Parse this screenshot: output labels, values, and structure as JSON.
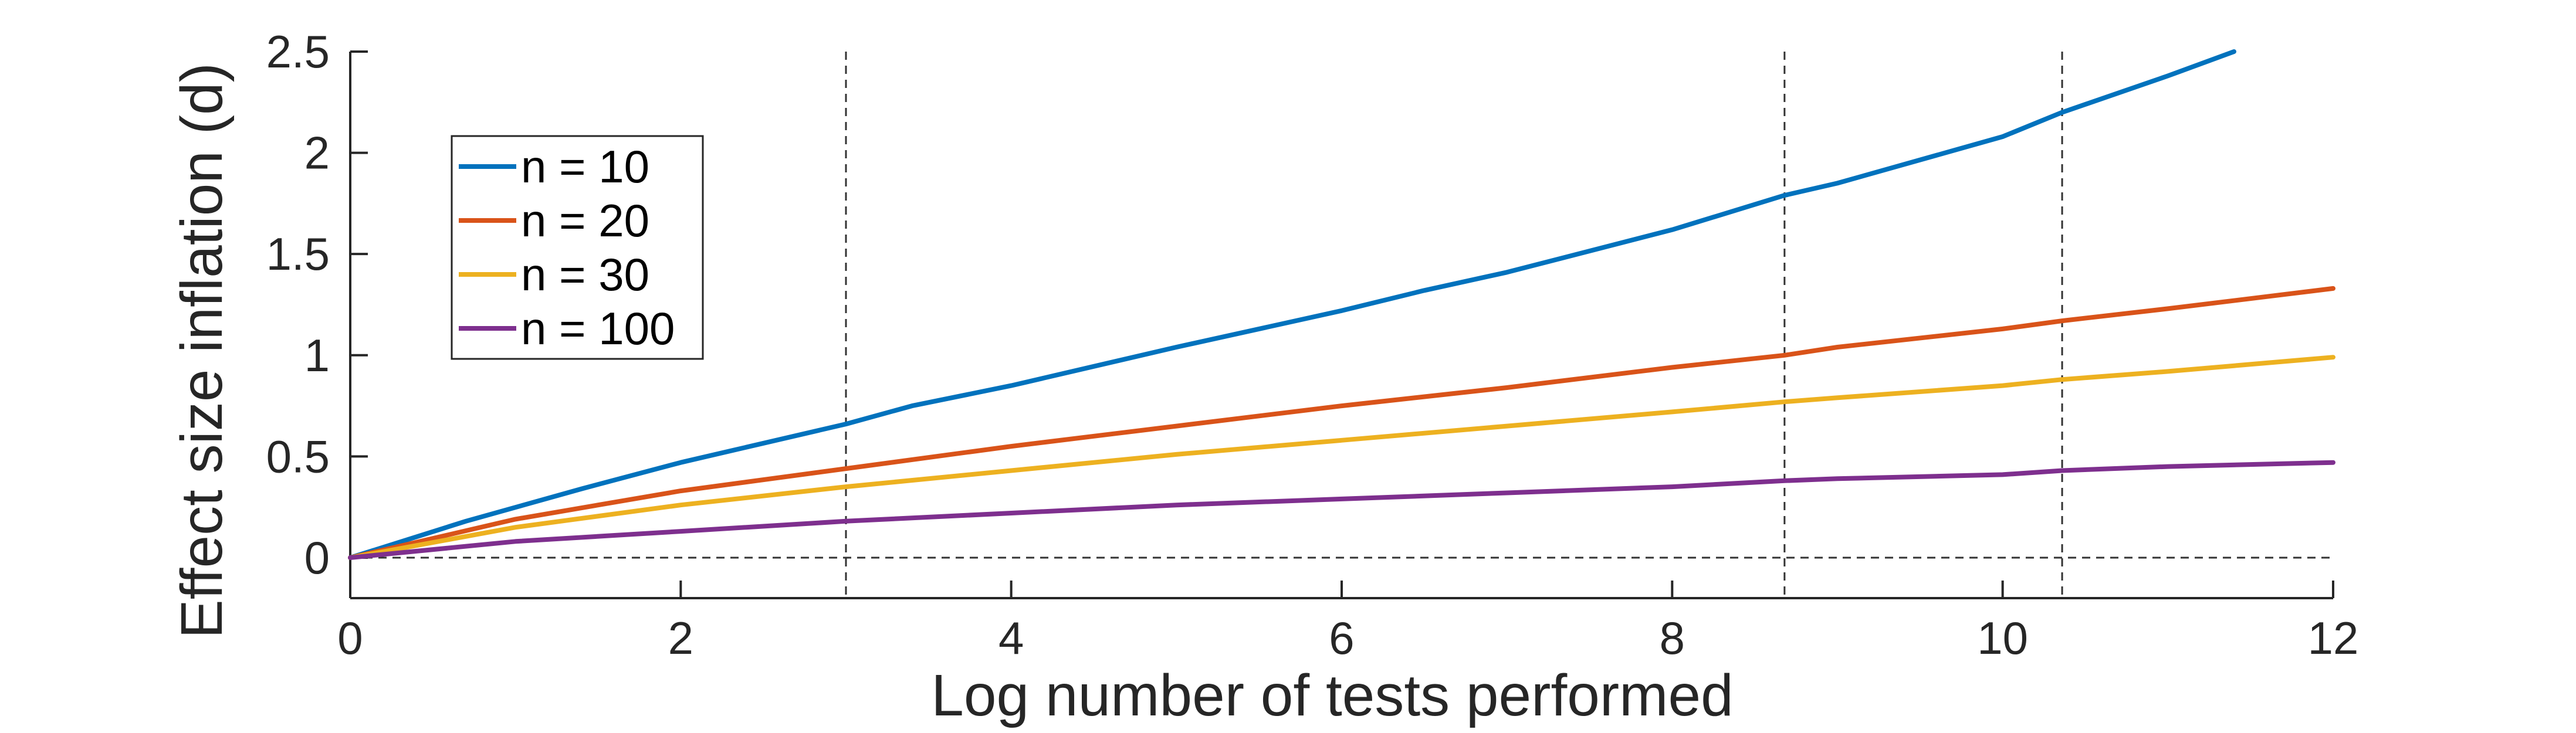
{
  "chart_data": {
    "type": "line",
    "title": "",
    "xlabel": "Log number of tests performed",
    "ylabel": "Effect size inflation (d)",
    "xlim": [
      0,
      12
    ],
    "ylim": [
      -0.2,
      2.5
    ],
    "xticks": [
      "0",
      "2",
      "4",
      "6",
      "8",
      "10",
      "12"
    ],
    "yticks": [
      "0",
      "0.5",
      "1",
      "1.5",
      "2",
      "2.5"
    ],
    "grid": false,
    "legend_position": "top-left",
    "reference_lines": {
      "vertical_x": [
        0,
        3.0,
        8.68,
        10.36
      ],
      "horizontal_y": [
        0
      ],
      "style": "dashed"
    },
    "series": [
      {
        "name": "n = 10",
        "color": "#0072BD",
        "x": [
          0,
          0.7,
          1.4,
          2.0,
          3.0,
          3.4,
          4.0,
          5.0,
          6.0,
          6.5,
          7.0,
          8.0,
          8.68,
          9.0,
          10.0,
          10.36,
          11.0,
          11.4
        ],
        "y": [
          0,
          0.18,
          0.34,
          0.47,
          0.66,
          0.75,
          0.85,
          1.04,
          1.22,
          1.32,
          1.41,
          1.62,
          1.79,
          1.85,
          2.08,
          2.2,
          2.38,
          2.5
        ]
      },
      {
        "name": "n = 20",
        "color": "#D95319",
        "x": [
          0,
          1.0,
          2.0,
          3.0,
          4.0,
          5.0,
          6.0,
          7.0,
          8.0,
          8.68,
          9.0,
          10.0,
          10.36,
          11.0,
          12.0
        ],
        "y": [
          0,
          0.19,
          0.33,
          0.44,
          0.55,
          0.65,
          0.75,
          0.84,
          0.94,
          1.0,
          1.04,
          1.13,
          1.17,
          1.23,
          1.33
        ]
      },
      {
        "name": "n = 30",
        "color": "#EDB120",
        "x": [
          0,
          1.0,
          2.0,
          3.0,
          4.0,
          5.0,
          6.0,
          7.0,
          8.0,
          8.68,
          9.0,
          10.0,
          10.36,
          11.0,
          12.0
        ],
        "y": [
          0,
          0.15,
          0.26,
          0.35,
          0.43,
          0.51,
          0.58,
          0.65,
          0.72,
          0.77,
          0.79,
          0.85,
          0.88,
          0.92,
          0.99
        ]
      },
      {
        "name": "n = 100",
        "color": "#7E2F8E",
        "x": [
          0,
          1.0,
          2.0,
          3.0,
          4.0,
          5.0,
          6.0,
          7.0,
          8.0,
          8.68,
          9.0,
          10.0,
          10.36,
          11.0,
          12.0
        ],
        "y": [
          0,
          0.08,
          0.13,
          0.18,
          0.22,
          0.26,
          0.29,
          0.32,
          0.35,
          0.38,
          0.39,
          0.41,
          0.43,
          0.45,
          0.47
        ]
      }
    ]
  }
}
